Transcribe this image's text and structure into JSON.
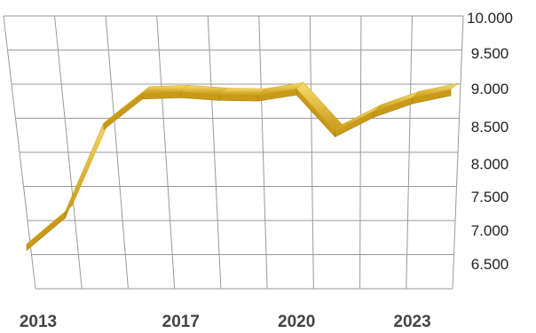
{
  "chart_data": {
    "type": "line",
    "style": "3d-ribbon",
    "grid": true,
    "x": [
      2013,
      2014,
      2015,
      2016,
      2017,
      2018,
      2019,
      2020,
      2021,
      2022,
      2023,
      2024
    ],
    "series": [
      {
        "values": [
          6910,
          7390,
          8700,
          9150,
          9170,
          9130,
          9120,
          9210,
          8590,
          8880,
          9080,
          9200
        ]
      }
    ],
    "ylim": [
      6500,
      10000
    ],
    "y_ticks": [
      "10.000",
      "9.500",
      "9.000",
      "8.500",
      "8.000",
      "7.500",
      "7.000",
      "6.500"
    ],
    "x_tick_labels": [
      "2013",
      "2017",
      "2020",
      "2023"
    ],
    "colors": {
      "ribbon_top": "#f2cf4a",
      "ribbon_face": "#c99a18",
      "grid": "#9a9a9a"
    }
  }
}
